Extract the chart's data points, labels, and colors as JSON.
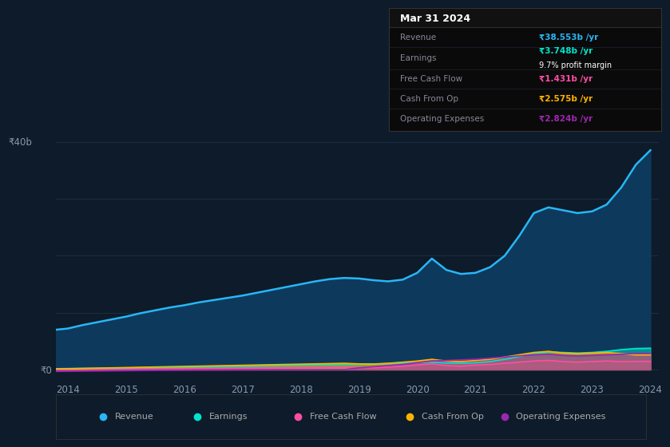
{
  "bg_color": "#0d1b2a",
  "plot_bg_color": "#0d1b2a",
  "years": [
    2013.8,
    2014.0,
    2014.25,
    2014.5,
    2014.75,
    2015.0,
    2015.25,
    2015.5,
    2015.75,
    2016.0,
    2016.25,
    2016.5,
    2016.75,
    2017.0,
    2017.25,
    2017.5,
    2017.75,
    2018.0,
    2018.25,
    2018.5,
    2018.75,
    2019.0,
    2019.25,
    2019.5,
    2019.75,
    2020.0,
    2020.25,
    2020.5,
    2020.75,
    2021.0,
    2021.25,
    2021.5,
    2021.75,
    2022.0,
    2022.25,
    2022.5,
    2022.75,
    2023.0,
    2023.25,
    2023.5,
    2023.75,
    2024.0
  ],
  "revenue": [
    7.0,
    7.2,
    7.8,
    8.3,
    8.8,
    9.3,
    9.9,
    10.4,
    10.9,
    11.3,
    11.8,
    12.2,
    12.6,
    13.0,
    13.5,
    14.0,
    14.5,
    15.0,
    15.5,
    15.9,
    16.1,
    16.0,
    15.7,
    15.5,
    15.8,
    17.0,
    19.5,
    17.5,
    16.8,
    17.0,
    18.0,
    20.0,
    23.5,
    27.5,
    28.5,
    28.0,
    27.5,
    27.8,
    29.0,
    32.0,
    36.0,
    38.553
  ],
  "earnings": [
    0.15,
    0.18,
    0.2,
    0.22,
    0.25,
    0.28,
    0.32,
    0.36,
    0.4,
    0.44,
    0.48,
    0.52,
    0.56,
    0.6,
    0.65,
    0.7,
    0.75,
    0.8,
    0.85,
    0.9,
    0.95,
    1.0,
    1.0,
    1.05,
    1.1,
    1.2,
    1.3,
    1.15,
    1.1,
    1.2,
    1.4,
    1.8,
    2.3,
    2.8,
    3.1,
    3.0,
    2.9,
    3.0,
    3.2,
    3.5,
    3.7,
    3.748
  ],
  "free_cash_flow": [
    -0.2,
    -0.15,
    -0.1,
    -0.05,
    0.0,
    0.05,
    0.08,
    0.1,
    0.12,
    0.15,
    0.18,
    0.2,
    0.22,
    0.25,
    0.28,
    0.3,
    0.33,
    0.35,
    0.38,
    0.4,
    0.42,
    0.35,
    0.3,
    0.45,
    0.6,
    0.8,
    1.0,
    0.7,
    0.6,
    0.8,
    0.9,
    1.1,
    1.3,
    1.5,
    1.6,
    1.4,
    1.3,
    1.4,
    1.5,
    1.4,
    1.431,
    1.431
  ],
  "cash_from_op": [
    0.1,
    0.15,
    0.2,
    0.25,
    0.3,
    0.35,
    0.4,
    0.45,
    0.5,
    0.55,
    0.6,
    0.65,
    0.7,
    0.75,
    0.8,
    0.85,
    0.9,
    0.95,
    1.0,
    1.05,
    1.1,
    1.0,
    0.95,
    1.1,
    1.3,
    1.5,
    1.8,
    1.5,
    1.4,
    1.6,
    1.8,
    2.2,
    2.6,
    3.0,
    3.2,
    2.9,
    2.8,
    2.9,
    3.0,
    2.8,
    2.575,
    2.575
  ],
  "operating_expenses": [
    -0.3,
    -0.28,
    -0.25,
    -0.22,
    -0.2,
    -0.18,
    -0.15,
    -0.12,
    -0.1,
    -0.08,
    -0.06,
    -0.05,
    -0.04,
    -0.03,
    -0.02,
    -0.01,
    0.0,
    0.0,
    0.0,
    0.0,
    0.0,
    0.3,
    0.5,
    0.7,
    0.9,
    1.2,
    1.5,
    1.6,
    1.7,
    1.8,
    2.0,
    2.2,
    2.4,
    2.6,
    2.7,
    2.5,
    2.4,
    2.5,
    2.6,
    2.7,
    2.824,
    2.824
  ],
  "revenue_color": "#29b6f6",
  "earnings_color": "#00e5cc",
  "fcf_color": "#ff4da6",
  "cashop_color": "#ffb300",
  "opex_color": "#9c27b0",
  "revenue_fill": "#0d3a5c",
  "ylim_min": -2,
  "ylim_max": 42,
  "grid_color": "#1e3448",
  "grid_vals": [
    0,
    10,
    20,
    30,
    40
  ],
  "xtick_vals": [
    2014,
    2015,
    2016,
    2017,
    2018,
    2019,
    2020,
    2021,
    2022,
    2023,
    2024
  ],
  "xtick_labels": [
    "2014",
    "2015",
    "2016",
    "2017",
    "2018",
    "2019",
    "2020",
    "2021",
    "2022",
    "2023",
    "2024"
  ],
  "tick_color": "#8899aa",
  "info_title": "Mar 31 2024",
  "info_rows": [
    {
      "label": "Revenue",
      "value": "₹38.553b /yr",
      "color": "#29b6f6",
      "sub": null
    },
    {
      "label": "Earnings",
      "value": "₹3.748b /yr",
      "color": "#00e5cc",
      "sub": "9.7% profit margin"
    },
    {
      "label": "Free Cash Flow",
      "value": "₹1.431b /yr",
      "color": "#ff4da6",
      "sub": null
    },
    {
      "label": "Cash From Op",
      "value": "₹2.575b /yr",
      "color": "#ffb300",
      "sub": null
    },
    {
      "label": "Operating Expenses",
      "value": "₹2.824b /yr",
      "color": "#9c27b0",
      "sub": null
    }
  ],
  "legend_labels": [
    "Revenue",
    "Earnings",
    "Free Cash Flow",
    "Cash From Op",
    "Operating Expenses"
  ],
  "legend_colors": [
    "#29b6f6",
    "#00e5cc",
    "#ff4da6",
    "#ffb300",
    "#9c27b0"
  ]
}
